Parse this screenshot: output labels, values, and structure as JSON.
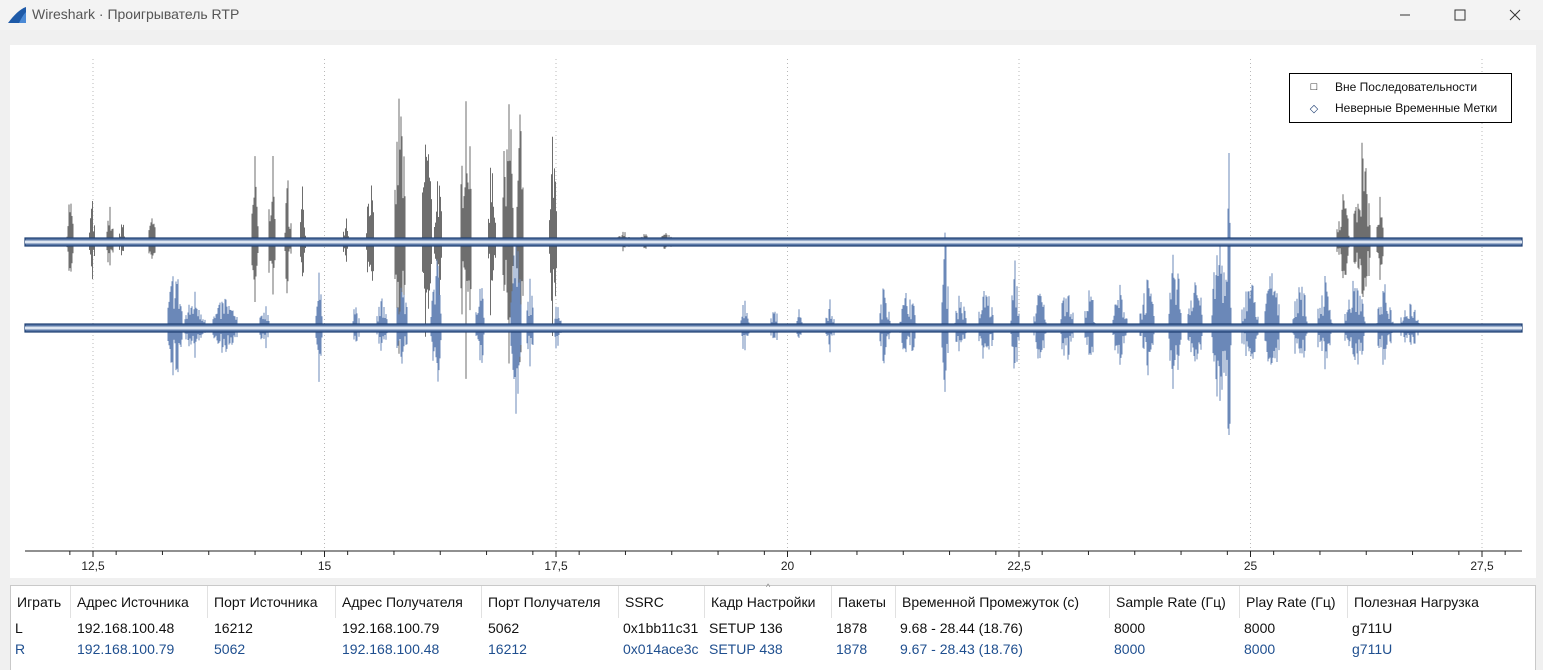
{
  "window": {
    "title": "Wireshark · Проигрыватель RTP",
    "controls": [
      "minimize-icon",
      "maximize-icon",
      "close-icon"
    ]
  },
  "plot": {
    "x_ticks": [
      "12,5",
      "15",
      "17,5",
      "20",
      "22,5",
      "25",
      "27,5"
    ],
    "legend": [
      {
        "symbol": "□",
        "label": "Вне Последовательности"
      },
      {
        "symbol": "◇",
        "label": "Неверные Временные Метки"
      }
    ],
    "colors": {
      "left_channel": "#6e6e6e",
      "right_channel": "#6b88b8",
      "marker_band": "#1f3f73"
    }
  },
  "table": {
    "columns": [
      "Играть",
      "Адрес Источника",
      "Порт Источника",
      "Адрес Получателя",
      "Порт Получателя",
      "SSRC",
      "Кадр Настройки",
      "Пакеты",
      "Временной Промежуток (с)",
      "Sample Rate (Гц)",
      "Play Rate (Гц)",
      "Полезная Нагрузка"
    ],
    "sort_indicator": "^",
    "rows": [
      [
        "L",
        "192.168.100.48",
        "16212",
        "192.168.100.79",
        "5062",
        "0x1bb11c31",
        "SETUP 136",
        "1878",
        "9.68 - 28.44 (18.76)",
        "8000",
        "8000",
        "g711U"
      ],
      [
        "R",
        "192.168.100.79",
        "5062",
        "192.168.100.48",
        "16212",
        "0x014ace3c",
        "SETUP 438",
        "1878",
        "9.67 - 28.43 (18.76)",
        "8000",
        "8000",
        "g711U"
      ]
    ]
  }
}
